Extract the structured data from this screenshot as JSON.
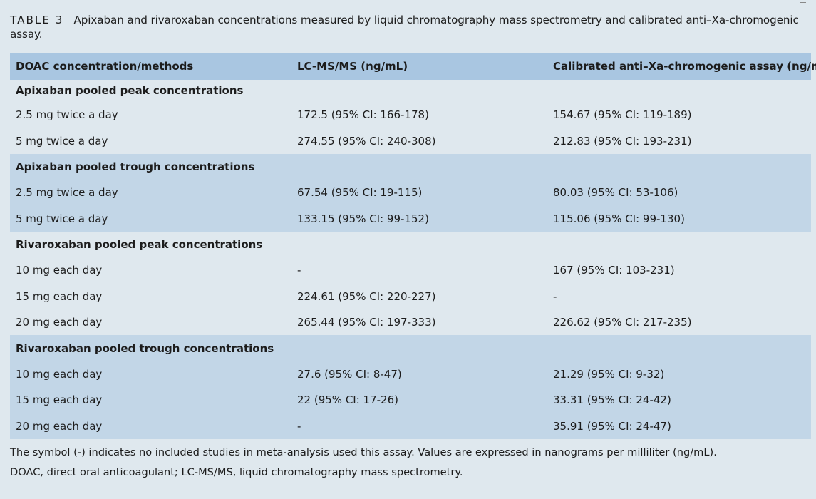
{
  "caption": {
    "label": "TABLE 3",
    "text": "Apixaban and rivaroxaban concentrations measured by liquid chromatography mass spectrometry and calibrated anti–Xa-chromogenic assay."
  },
  "header": {
    "col1": "DOAC concentration/methods",
    "col2": "LC-MS/MS (ng/mL)",
    "col3": "Calibrated anti–Xa-chromogenic assay (ng/mL)"
  },
  "rows": [
    {
      "type": "section",
      "label": "Apixaban pooled peak concentrations",
      "lcms": "",
      "anti_xa": ""
    },
    {
      "type": "data",
      "label": "2.5 mg twice a day",
      "lcms": "172.5 (95% CI: 166-178)",
      "anti_xa": "154.67 (95% CI: 119-189)"
    },
    {
      "type": "data",
      "label": "5 mg twice a day",
      "lcms": "274.55 (95% CI: 240-308)",
      "anti_xa": "212.83 (95% CI: 193-231)"
    },
    {
      "type": "section",
      "label": "Apixaban pooled trough concentrations",
      "lcms": "",
      "anti_xa": ""
    },
    {
      "type": "data",
      "label": "2.5 mg twice a day",
      "lcms": "67.54 (95% CI: 19-115)",
      "anti_xa": "80.03 (95% CI: 53-106)"
    },
    {
      "type": "data",
      "label": "5 mg twice a day",
      "lcms": "133.15 (95% CI: 99-152)",
      "anti_xa": "115.06 (95% CI: 99-130)"
    },
    {
      "type": "section",
      "label": "Rivaroxaban pooled peak concentrations",
      "lcms": "",
      "anti_xa": ""
    },
    {
      "type": "data",
      "label": "10 mg each day",
      "lcms": "-",
      "anti_xa": "167 (95% CI: 103-231)"
    },
    {
      "type": "data",
      "label": "15 mg each day",
      "lcms": "224.61 (95% CI: 220-227)",
      "anti_xa": "-"
    },
    {
      "type": "data",
      "label": "20 mg each day",
      "lcms": "265.44 (95% CI: 197-333)",
      "anti_xa": "226.62 (95% CI: 217-235)"
    },
    {
      "type": "section",
      "label": "Rivaroxaban pooled trough concentrations",
      "lcms": "",
      "anti_xa": ""
    },
    {
      "type": "data",
      "label": "10 mg each day",
      "lcms": "27.6 (95% CI: 8-47)",
      "anti_xa": "21.29 (95% CI: 9-32)"
    },
    {
      "type": "data",
      "label": "15 mg each day",
      "lcms": "22 (95% CI: 17-26)",
      "anti_xa": "33.31 (95% CI: 24-42)"
    },
    {
      "type": "data",
      "label": "20 mg each day",
      "lcms": "-",
      "anti_xa": "35.91 (95% CI: 24-47)"
    }
  ],
  "footnotes": [
    "The symbol (-) indicates no included studies in meta-analysis used this assay. Values are expressed in nanograms per milliliter (ng/mL).",
    "DOAC, direct oral anticoagulant; LC-MS/MS, liquid chromatography mass spectrometry."
  ]
}
